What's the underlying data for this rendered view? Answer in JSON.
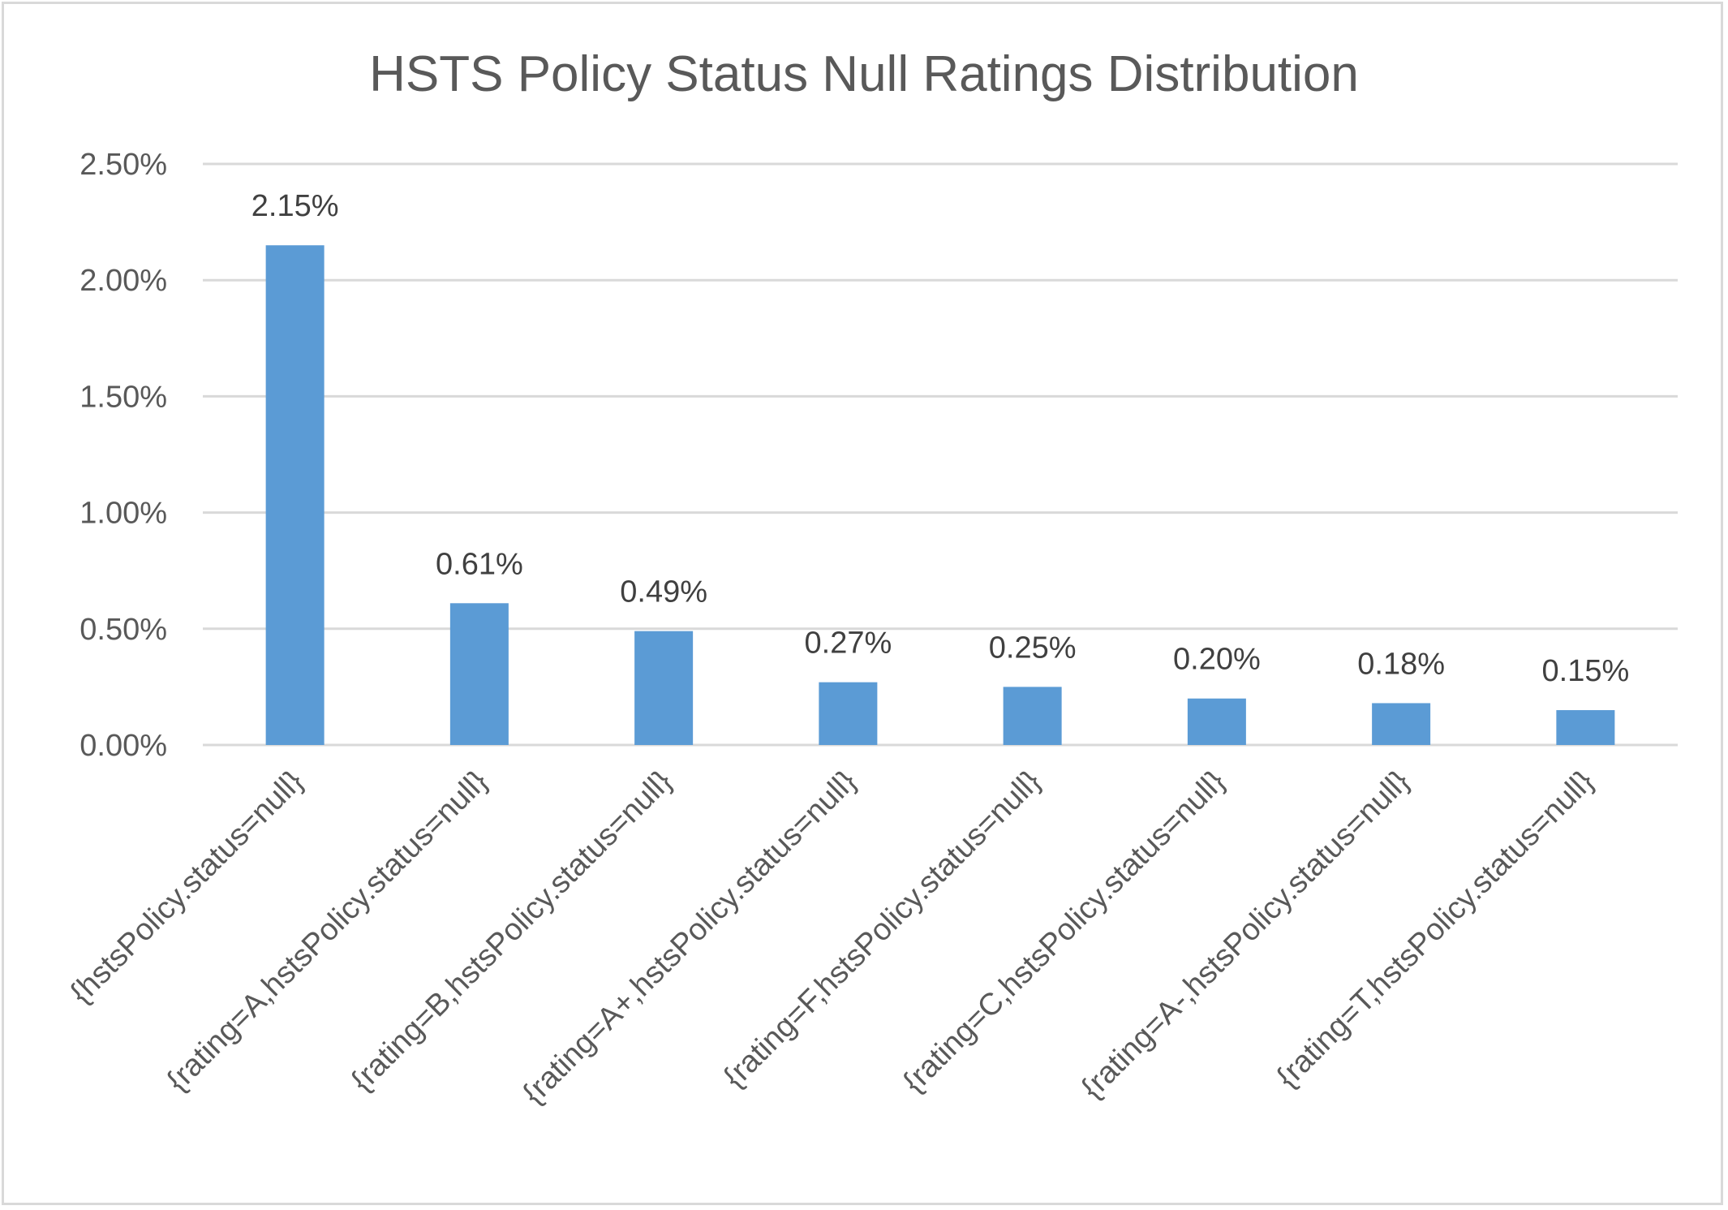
{
  "chart_data": {
    "type": "bar",
    "title": "HSTS Policy Status Null Ratings Distribution",
    "xlabel": "",
    "ylabel": "",
    "ylim": [
      0,
      0.025
    ],
    "y_ticks": [
      0,
      0.005,
      0.01,
      0.015,
      0.02,
      0.025
    ],
    "y_tick_labels": [
      "0.00%",
      "0.50%",
      "1.00%",
      "1.50%",
      "2.00%",
      "2.50%"
    ],
    "grid": true,
    "legend": "none",
    "bar_color": "#5b9bd5",
    "categories": [
      "{hstsPolicy.status=null}",
      "{rating=A,hstsPolicy.status=null}",
      "{rating=B,hstsPolicy.status=null}",
      "{rating=A+,hstsPolicy.status=null}",
      "{rating=F,hstsPolicy.status=null}",
      "{rating=C,hstsPolicy.status=null}",
      "{rating=A-,hstsPolicy.status=null}",
      "{rating=T,hstsPolicy.status=null}"
    ],
    "values": [
      0.0215,
      0.0061,
      0.0049,
      0.0027,
      0.0025,
      0.002,
      0.0018,
      0.0015
    ],
    "data_labels": [
      "2.15%",
      "0.61%",
      "0.49%",
      "0.27%",
      "0.25%",
      "0.20%",
      "0.18%",
      "0.15%"
    ]
  }
}
